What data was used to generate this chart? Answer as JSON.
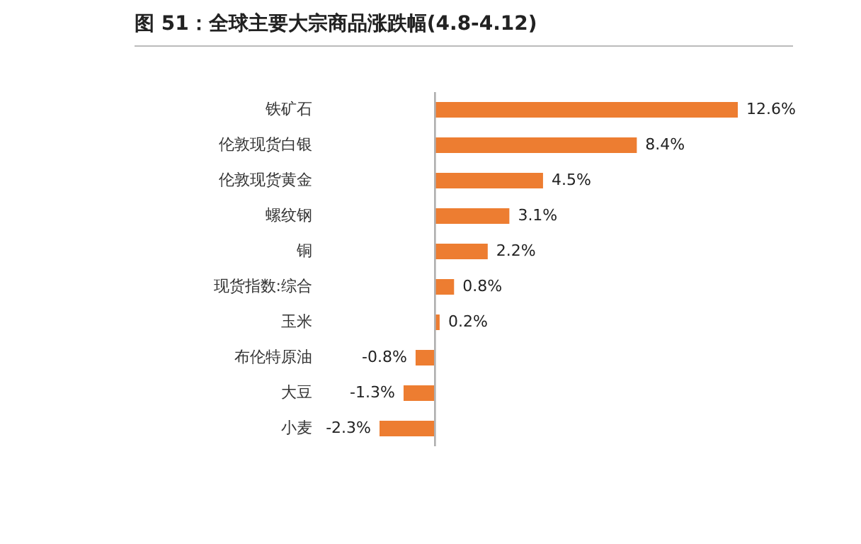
{
  "chart_data": {
    "type": "bar",
    "orientation": "horizontal",
    "title": "图 51：全球主要大宗商品涨跌幅(4.8-4.12)",
    "categories": [
      "铁矿石",
      "伦敦现货白银",
      "伦敦现货黄金",
      "螺纹钢",
      "铜",
      "现货指数:综合",
      "玉米",
      "布伦特原油",
      "大豆",
      "小麦"
    ],
    "values": [
      12.6,
      8.4,
      4.5,
      3.1,
      2.2,
      0.8,
      0.2,
      -0.8,
      -1.3,
      -2.3
    ],
    "value_labels": [
      "12.6%",
      "8.4%",
      "4.5%",
      "3.1%",
      "2.2%",
      "0.8%",
      "0.2%",
      "-0.8%",
      "-1.3%",
      "-2.3%"
    ],
    "color": "#ed7d31",
    "grid": false
  }
}
